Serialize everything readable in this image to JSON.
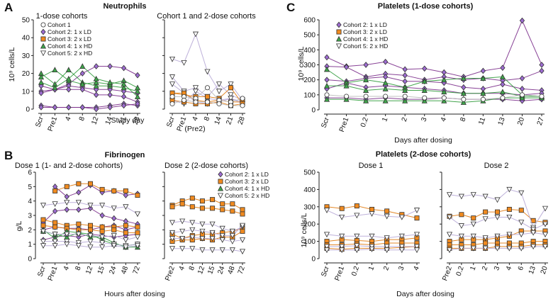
{
  "colors": {
    "c1": "#bbbbbb",
    "c2": "#7b2d8b",
    "c3": "#e07a10",
    "c4": "#2f9a3a",
    "c5": "#b7a8d6",
    "c2_fill": "#9d6bd1",
    "c3_fill": "#f08a1f",
    "c4_fill": "#3ea64a",
    "c5_fill": "#ffffff"
  },
  "panels": {
    "A": {
      "label": "A",
      "title": "Neutrophils",
      "ylabel": "10⁹ cells/L",
      "xlabel": "Study day",
      "yticks": [
        "0",
        "10",
        "20",
        "30",
        "40",
        "50"
      ],
      "left": {
        "subtitle": "1-dose cohorts",
        "xticks": [
          "Scr",
          "Pre1",
          "4",
          "8",
          "12",
          "14",
          "21",
          "28"
        ]
      },
      "right": {
        "subtitle": "Cohort 1 and 2-dose cohorts",
        "xticks": [
          "Scr",
          "Pre1",
          "4",
          "8",
          "14",
          "21",
          "28"
        ],
        "note": "(Pre2)"
      }
    },
    "B": {
      "label": "B",
      "title": "Fibrinogen",
      "ylabel": "g/L",
      "xlabel": "Hours after dosing",
      "yticks": [
        "0",
        "1",
        "2",
        "3",
        "4",
        "5",
        "6"
      ],
      "left": {
        "subtitle": "Dose 1 (1- and 2-dose cohorts)",
        "xticks": [
          "Scr",
          "Pre1",
          "4",
          "8",
          "12",
          "15",
          "24",
          "48",
          "72"
        ]
      },
      "right": {
        "subtitle": "Dose 2 (2-dose cohorts)",
        "xticks": [
          "Pre2",
          "4",
          "8",
          "12",
          "15",
          "24",
          "48",
          "72"
        ]
      }
    },
    "C": {
      "label": "C",
      "title": "Platelets (1-dose cohorts)",
      "ylabel": "10⁹ cells/L",
      "xlabel": "Days after dosing",
      "yticks": [
        "0",
        "100",
        "200",
        "300",
        "400",
        "500",
        "600"
      ],
      "xticks": [
        "Scr",
        "Pre1",
        "0.2",
        "1",
        "2",
        "3",
        "4",
        "8",
        "11",
        "13",
        "20",
        "27"
      ]
    },
    "D": {
      "title": "Platelets (2-dose cohorts)",
      "ylabel": "10⁹ cells/L",
      "xlabel": "Days after dosing",
      "yticks": [
        "0",
        "100",
        "200",
        "300",
        "400",
        "500"
      ],
      "left": {
        "subtitle": "Dose 1",
        "xticks": [
          "Scr",
          "Pre1",
          "0.2",
          "1",
          "2",
          "3",
          "4"
        ]
      },
      "right": {
        "subtitle": "Dose 2",
        "xticks": [
          "Pre2",
          "0.2",
          "1",
          "2",
          "3",
          "4",
          "6",
          "13",
          "20"
        ]
      }
    }
  },
  "legends": {
    "A": [
      "Cohort 1",
      "Cohort 2: 1 x LD",
      "Cohort 3: 2 x LD",
      "Cohort 4: 1 x HD",
      "Cohort 5: 2 x HD"
    ],
    "B": [
      "Cohort 2: 1 x LD",
      "Cohort 3: 2 x LD",
      "Cohort 4: 1 x HD",
      "Cohort 5: 2 x HD"
    ],
    "C": [
      "Cohort 2: 1 x LD",
      "Cohort 3: 2 x LD",
      "Cohort 4: 1 x HD",
      "Cohort 5: 2 x HD"
    ]
  },
  "chart_data": [
    {
      "type": "line",
      "id": "A-left",
      "title": "Neutrophils — 1-dose cohorts",
      "ylim": [
        0,
        50
      ],
      "categories": [
        "Scr",
        "Pre1",
        "4",
        "8",
        "12",
        "14",
        "21",
        "28"
      ],
      "series": [
        {
          "cohort": "c2",
          "values": [
            13,
            11,
            14,
            20,
            24,
            24,
            23,
            19
          ]
        },
        {
          "cohort": "c2",
          "values": [
            10,
            11,
            13,
            12,
            11,
            11,
            10,
            9
          ]
        },
        {
          "cohort": "c2",
          "values": [
            9,
            11,
            11,
            11,
            8,
            8,
            7,
            4
          ]
        },
        {
          "cohort": "c2",
          "values": [
            2,
            1,
            1,
            1,
            1,
            2,
            3,
            2
          ]
        },
        {
          "cohort": "c2",
          "values": [
            1,
            1,
            1,
            1,
            0,
            1,
            2,
            3
          ]
        },
        {
          "cohort": "c4",
          "values": [
            20,
            14,
            22,
            15,
            13,
            13,
            12,
            10
          ]
        },
        {
          "cohort": "c4",
          "values": [
            18,
            22,
            16,
            14,
            15,
            14,
            16,
            12
          ]
        },
        {
          "cohort": "c4",
          "values": [
            15,
            12,
            17,
            24,
            17,
            15,
            14,
            7
          ]
        }
      ]
    },
    {
      "type": "line",
      "id": "A-right",
      "title": "Neutrophils — Cohort 1 and 2-dose cohorts",
      "ylim": [
        0,
        50
      ],
      "categories": [
        "Scr",
        "Pre1",
        "4",
        "8",
        "14",
        "21",
        "28"
      ],
      "series": [
        {
          "cohort": "c5",
          "values": [
            28,
            26,
            42,
            21,
            10,
            14,
            5
          ]
        },
        {
          "cohort": "c5",
          "values": [
            18,
            10,
            12,
            7,
            14,
            8,
            5
          ]
        },
        {
          "cohort": "c5",
          "values": [
            14,
            9,
            4,
            3,
            4,
            6,
            4
          ]
        },
        {
          "cohort": "c5",
          "values": [
            5,
            3,
            10,
            6,
            5,
            6,
            3
          ]
        },
        {
          "cohort": "c3",
          "values": [
            9,
            8,
            7,
            7,
            6,
            12,
            3
          ]
        },
        {
          "cohort": "c3",
          "values": [
            9,
            9,
            5,
            4,
            5,
            4,
            4
          ]
        },
        {
          "cohort": "c3",
          "values": [
            5,
            4,
            3,
            3,
            4,
            2,
            3
          ]
        },
        {
          "cohort": "c1",
          "values": [
            7,
            7,
            6,
            12,
            5,
            4,
            6
          ]
        },
        {
          "cohort": "c1",
          "values": [
            3,
            5,
            4,
            4,
            3,
            2,
            2
          ]
        }
      ]
    },
    {
      "type": "line",
      "id": "B-left",
      "title": "Fibrinogen — Dose 1 (1- and 2-dose cohorts)",
      "ylim": [
        0,
        6
      ],
      "categories": [
        "Scr",
        "Pre1",
        "4",
        "8",
        "12",
        "15",
        "24",
        "48",
        "72"
      ],
      "series": [
        {
          "cohort": "c2",
          "values": [
            null,
            5.0,
            4.3,
            4.6,
            5.1,
            4.6,
            4.7,
            4.4,
            4.5
          ]
        },
        {
          "cohort": "c2",
          "values": [
            2.5,
            3.3,
            3.4,
            3.4,
            3.5,
            3.0,
            2.8,
            2.6,
            2.4
          ]
        },
        {
          "cohort": "c2",
          "values": [
            2.0,
            2.2,
            2.1,
            2.1,
            2.0,
            2.2,
            2.3,
            2.0,
            2.2
          ]
        },
        {
          "cohort": "c2",
          "values": [
            1.3,
            1.5,
            1.6,
            1.5,
            1.7,
            1.6,
            1.5,
            1.6,
            1.7
          ]
        },
        {
          "cohort": "c3",
          "values": [
            null,
            4.7,
            5.0,
            5.2,
            5.2,
            4.8,
            4.7,
            4.7,
            4.4
          ]
        },
        {
          "cohort": "c3",
          "values": [
            2.7,
            2.5,
            2.3,
            2.4,
            2.3,
            2.2,
            2.2,
            2.3,
            2.2
          ]
        },
        {
          "cohort": "c3",
          "values": [
            2.3,
            2.2,
            2.1,
            2.0,
            2.0,
            1.9,
            2.0,
            1.8,
            1.8
          ]
        },
        {
          "cohort": "c4",
          "values": [
            2.0,
            1.4,
            1.9,
            1.8,
            1.7,
            1.3,
            1.0,
            0.9,
            1.0
          ]
        },
        {
          "cohort": "c4",
          "values": [
            1.9,
            1.7,
            1.5,
            1.8,
            1.5,
            1.5,
            1.1,
            0.8,
            0.8
          ]
        },
        {
          "cohort": "c5",
          "values": [
            3.7,
            3.8,
            3.9,
            3.9,
            3.7,
            3.7,
            3.5,
            3.6,
            3.1
          ]
        },
        {
          "cohort": "c5",
          "values": [
            1.9,
            1.7,
            1.7,
            1.7,
            1.6,
            1.5,
            1.6,
            1.3,
            1.5
          ]
        },
        {
          "cohort": "c5",
          "values": [
            1.2,
            1.2,
            1.2,
            1.1,
            1.2,
            1.1,
            1.0,
            0.9,
            1.0
          ]
        },
        {
          "cohort": "c5",
          "values": [
            0.9,
            0.9,
            1.0,
            0.9,
            0.8,
            0.8,
            0.9,
            0.8,
            0.9
          ]
        }
      ]
    },
    {
      "type": "line",
      "id": "B-right",
      "title": "Fibrinogen — Dose 2 (2-dose cohorts)",
      "ylim": [
        0,
        6
      ],
      "categories": [
        "Pre2",
        "4",
        "8",
        "12",
        "15",
        "24",
        "48",
        "72"
      ],
      "series": [
        {
          "cohort": "c3",
          "values": [
            3.7,
            4.0,
            4.2,
            4.0,
            4.1,
            3.8,
            3.8,
            3.4
          ]
        },
        {
          "cohort": "c3",
          "values": [
            3.6,
            3.8,
            3.6,
            3.5,
            3.5,
            3.4,
            3.3,
            3.1
          ]
        },
        {
          "cohort": "c3",
          "values": [
            1.7,
            1.4,
            1.6,
            1.7,
            1.7,
            1.8,
            1.9,
            2.1
          ]
        },
        {
          "cohort": "c3",
          "values": [
            1.2,
            1.3,
            1.3,
            1.4,
            1.3,
            1.5,
            1.5,
            1.9
          ]
        },
        {
          "cohort": "c5",
          "values": [
            2.5,
            2.6,
            2.5,
            2.4,
            2.4,
            2.1,
            1.9,
            2.2
          ]
        },
        {
          "cohort": "c5",
          "values": [
            1.8,
            1.9,
            2.0,
            1.9,
            1.8,
            1.6,
            1.6,
            2.3
          ]
        },
        {
          "cohort": "c5",
          "values": [
            1.4,
            1.4,
            1.5,
            1.4,
            1.4,
            1.3,
            1.2,
            1.3
          ]
        },
        {
          "cohort": "c5",
          "values": [
            0.7,
            0.7,
            0.7,
            0.6,
            0.6,
            0.6,
            0.6,
            0.5
          ]
        }
      ]
    },
    {
      "type": "line",
      "id": "C",
      "title": "Platelets (1-dose cohorts)",
      "ylim": [
        0,
        600
      ],
      "categories": [
        "Scr",
        "Pre1",
        "0.2",
        "1",
        "2",
        "3",
        "4",
        "8",
        "11",
        "13",
        "20",
        "27"
      ],
      "series": [
        {
          "cohort": "c2",
          "values": [
            350,
            290,
            300,
            320,
            270,
            275,
            250,
            220,
            260,
            280,
            595,
            300
          ]
        },
        {
          "cohort": "c2",
          "values": [
            290,
            285,
            220,
            240,
            230,
            200,
            220,
            200,
            210,
            195,
            210,
            260
          ]
        },
        {
          "cohort": "c2",
          "values": [
            200,
            190,
            210,
            220,
            190,
            190,
            180,
            150,
            140,
            170,
            140,
            130
          ]
        },
        {
          "cohort": "c2",
          "values": [
            140,
            180,
            150,
            160,
            150,
            140,
            130,
            110,
            110,
            110,
            100,
            110
          ]
        },
        {
          "cohort": "c2",
          "values": [
            80,
            80,
            70,
            80,
            70,
            70,
            80,
            70,
            70,
            70,
            60,
            70
          ]
        },
        {
          "cohort": "c4",
          "values": [
            270,
            180,
            200,
            180,
            150,
            190,
            200,
            210,
            210,
            220,
            100,
            90
          ]
        },
        {
          "cohort": "c4",
          "values": [
            160,
            160,
            130,
            140,
            130,
            130,
            120,
            110,
            110,
            120,
            90,
            90
          ]
        },
        {
          "cohort": "c4",
          "values": [
            70,
            70,
            60,
            60,
            60,
            60,
            60,
            50,
            60,
            80,
            80,
            80
          ]
        },
        {
          "cohort": "c1",
          "values": [
            100,
            90,
            90,
            90,
            90,
            80,
            80,
            70,
            70,
            80,
            100,
            90
          ]
        }
      ]
    },
    {
      "type": "line",
      "id": "D-left",
      "title": "Platelets (2-dose cohorts) — Dose 1",
      "ylim": [
        0,
        500
      ],
      "categories": [
        "Scr",
        "Pre1",
        "0.2",
        "1",
        "2",
        "3",
        "4"
      ],
      "series": [
        {
          "cohort": "c3",
          "values": [
            300,
            290,
            305,
            285,
            275,
            255,
            235
          ]
        },
        {
          "cohort": "c3",
          "values": [
            100,
            110,
            105,
            100,
            110,
            110,
            120
          ]
        },
        {
          "cohort": "c3",
          "values": [
            80,
            80,
            85,
            80,
            90,
            90,
            90
          ]
        },
        {
          "cohort": "c3",
          "values": [
            60,
            55,
            60,
            60,
            60,
            65,
            70
          ]
        },
        {
          "cohort": "c5",
          "values": [
            280,
            240,
            250,
            260,
            245,
            240,
            280
          ]
        },
        {
          "cohort": "c5",
          "values": [
            140,
            130,
            130,
            130,
            120,
            130,
            140
          ]
        },
        {
          "cohort": "c5",
          "values": [
            70,
            70,
            75,
            70,
            70,
            70,
            70
          ]
        },
        {
          "cohort": "c5",
          "values": [
            50,
            50,
            50,
            55,
            50,
            50,
            50
          ]
        }
      ]
    },
    {
      "type": "line",
      "id": "D-right",
      "title": "Platelets (2-dose cohorts) — Dose 2",
      "ylim": [
        0,
        500
      ],
      "categories": [
        "Pre2",
        "0.2",
        "1",
        "2",
        "3",
        "4",
        "6",
        "13",
        "20"
      ],
      "series": [
        {
          "cohort": "c3",
          "values": [
            245,
            255,
            235,
            270,
            270,
            285,
            280,
            220,
            210
          ]
        },
        {
          "cohort": "c3",
          "values": [
            100,
            110,
            110,
            110,
            120,
            130,
            160,
            160,
            160
          ]
        },
        {
          "cohort": "c3",
          "values": [
            80,
            80,
            80,
            90,
            90,
            90,
            90,
            100,
            100
          ]
        },
        {
          "cohort": "c3",
          "values": [
            60,
            60,
            60,
            60,
            70,
            70,
            70,
            80,
            80
          ]
        },
        {
          "cohort": "c5",
          "values": [
            370,
            360,
            370,
            360,
            340,
            400,
            380,
            180,
            290
          ]
        },
        {
          "cohort": "c5",
          "values": [
            240,
            190,
            200,
            230,
            240,
            240,
            210,
            170,
            200
          ]
        },
        {
          "cohort": "c5",
          "values": [
            140,
            130,
            130,
            120,
            130,
            140,
            140,
            150,
            140
          ]
        },
        {
          "cohort": "c5",
          "values": [
            50,
            60,
            60,
            60,
            60,
            60,
            60,
            70,
            70
          ]
        }
      ]
    }
  ]
}
